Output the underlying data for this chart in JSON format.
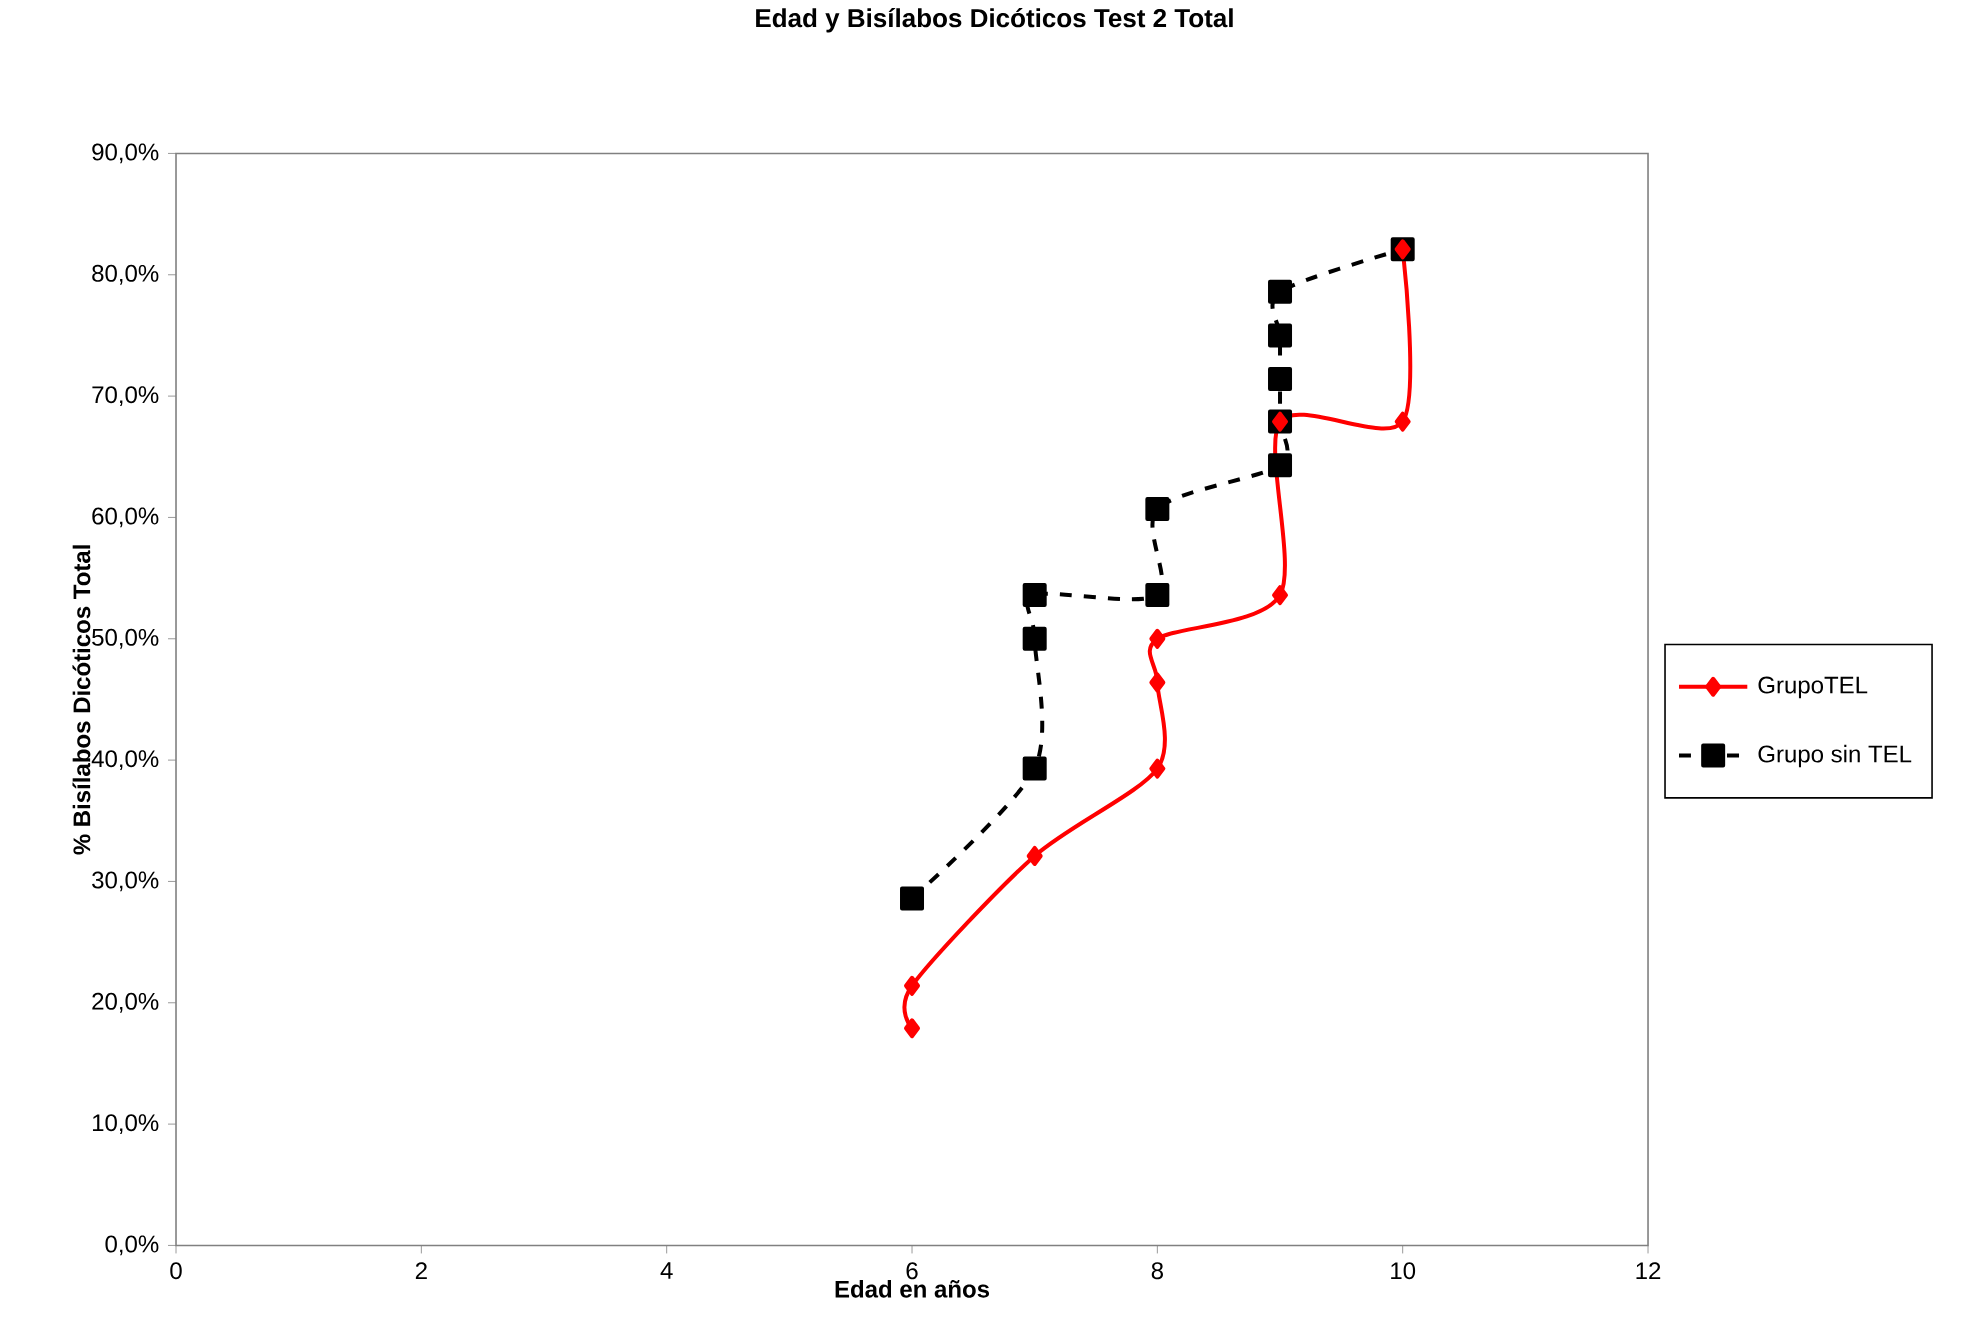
{
  "chart_data": {
    "type": "line",
    "title": "Edad y Bisílabos Dicóticos Test 2 Total",
    "xlabel": "Edad en años",
    "ylabel": "% Bisílabos Dicóticos Total",
    "xlim": [
      0,
      12
    ],
    "xticks": [
      0,
      2,
      4,
      6,
      8,
      10,
      12
    ],
    "ylim": [
      0,
      90
    ],
    "yticks": [
      {
        "value": 0,
        "label": "0,0%"
      },
      {
        "value": 10,
        "label": "10,0%"
      },
      {
        "value": 20,
        "label": "20,0%"
      },
      {
        "value": 30,
        "label": "30,0%"
      },
      {
        "value": 40,
        "label": "40,0%"
      },
      {
        "value": 50,
        "label": "50,0%"
      },
      {
        "value": 60,
        "label": "60,0%"
      },
      {
        "value": 70,
        "label": "70,0%"
      },
      {
        "value": 80,
        "label": "80,0%"
      },
      {
        "value": 90,
        "label": "90,0%"
      }
    ],
    "legend": "right",
    "grid": false,
    "series": [
      {
        "name": "GrupoTEL",
        "color": "#ff0000",
        "marker": "diamond",
        "line_style": "solid",
        "x": [
          6,
          6,
          7,
          8,
          8,
          8,
          9,
          9,
          10,
          10
        ],
        "values": [
          17.9,
          21.4,
          32.1,
          39.3,
          46.4,
          50.0,
          53.6,
          67.9,
          67.9,
          82.1
        ]
      },
      {
        "name": "Grupo sin TEL",
        "color": "#000000",
        "marker": "square",
        "line_style": "dashed",
        "x": [
          6,
          7,
          7,
          7,
          8,
          8,
          9,
          9,
          9,
          9,
          9,
          10
        ],
        "values": [
          28.6,
          39.3,
          50.0,
          53.6,
          53.6,
          60.7,
          64.3,
          67.9,
          71.4,
          75.0,
          78.6,
          82.1
        ]
      }
    ]
  }
}
